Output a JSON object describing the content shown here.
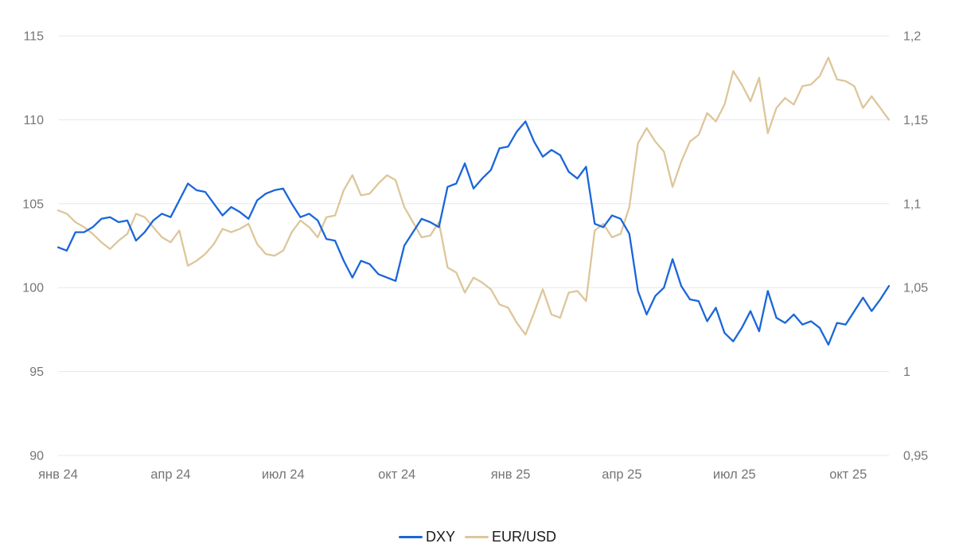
{
  "chart_data": {
    "type": "line",
    "title": "",
    "background": "#ffffff",
    "grid": "horizontal",
    "grid_color": "#e7e7e7",
    "axis_label_color": "#757575",
    "legend_position": "bottom-center",
    "start_date": "2024-01-01",
    "interval_days": 7,
    "total_days": 672,
    "x_tick_labels": [
      "янв 24",
      "апр 24",
      "июл 24",
      "окт 24",
      "янв 25",
      "апр 25",
      "июл 25",
      "окт 25"
    ],
    "x_tick_days": [
      0,
      91,
      182,
      274,
      366,
      456,
      547,
      639
    ],
    "left_axis": {
      "min": 90,
      "max": 115,
      "tick_values": [
        90,
        95,
        100,
        105,
        110,
        115
      ],
      "tick_labels": [
        "90",
        "95",
        "100",
        "105",
        "110",
        "115"
      ]
    },
    "right_axis": {
      "min": 0.95,
      "max": 1.2,
      "tick_values": [
        0.95,
        1.0,
        1.05,
        1.1,
        1.15,
        1.2
      ],
      "tick_labels": [
        "0,95",
        "1",
        "1,05",
        "1,1",
        "1,15",
        "1,2"
      ]
    },
    "series": [
      {
        "name": "DXY",
        "axis": "left",
        "color": "#1a66d9",
        "values": [
          102.4,
          102.2,
          103.3,
          103.3,
          103.6,
          104.1,
          104.2,
          103.9,
          104.0,
          102.8,
          103.3,
          104.0,
          104.4,
          104.2,
          105.2,
          106.2,
          105.8,
          105.7,
          105.0,
          104.3,
          104.8,
          104.5,
          104.1,
          105.2,
          105.6,
          105.8,
          105.9,
          105.0,
          104.2,
          104.4,
          104.0,
          102.9,
          102.8,
          101.6,
          100.6,
          101.6,
          101.4,
          100.8,
          100.6,
          100.4,
          102.5,
          103.3,
          104.1,
          103.9,
          103.6,
          106.0,
          106.2,
          107.4,
          105.9,
          106.5,
          107.0,
          108.3,
          108.4,
          109.3,
          109.9,
          108.7,
          107.8,
          108.2,
          107.9,
          106.9,
          106.5,
          107.2,
          103.8,
          103.6,
          104.3,
          104.1,
          103.2,
          99.8,
          98.4,
          99.5,
          100.0,
          101.7,
          100.1,
          99.3,
          99.2,
          98.0,
          98.8,
          97.3,
          96.8,
          97.6,
          98.6,
          97.4,
          99.8,
          98.2,
          97.9,
          98.4,
          97.8,
          98.0,
          97.6,
          96.6,
          97.9,
          97.8,
          98.6,
          99.4,
          98.6,
          99.3,
          100.1
        ]
      },
      {
        "name": "EUR/USD",
        "axis": "right",
        "color": "#ddc69b",
        "values": [
          1.096,
          1.094,
          1.089,
          1.086,
          1.082,
          1.077,
          1.073,
          1.078,
          1.082,
          1.094,
          1.092,
          1.086,
          1.08,
          1.077,
          1.084,
          1.063,
          1.066,
          1.07,
          1.076,
          1.085,
          1.083,
          1.085,
          1.088,
          1.076,
          1.07,
          1.069,
          1.072,
          1.083,
          1.09,
          1.086,
          1.08,
          1.092,
          1.093,
          1.108,
          1.117,
          1.105,
          1.106,
          1.112,
          1.117,
          1.114,
          1.098,
          1.089,
          1.08,
          1.081,
          1.089,
          1.062,
          1.059,
          1.047,
          1.056,
          1.053,
          1.049,
          1.04,
          1.038,
          1.029,
          1.022,
          1.035,
          1.049,
          1.034,
          1.032,
          1.047,
          1.048,
          1.042,
          1.084,
          1.088,
          1.08,
          1.082,
          1.098,
          1.136,
          1.145,
          1.137,
          1.131,
          1.11,
          1.125,
          1.137,
          1.141,
          1.154,
          1.149,
          1.159,
          1.179,
          1.171,
          1.161,
          1.175,
          1.142,
          1.157,
          1.163,
          1.159,
          1.17,
          1.171,
          1.176,
          1.187,
          1.174,
          1.173,
          1.17,
          1.157,
          1.164,
          1.157,
          1.15
        ]
      }
    ],
    "legend": {
      "items": [
        {
          "label": "DXY"
        },
        {
          "label": "EUR/USD"
        }
      ]
    }
  }
}
